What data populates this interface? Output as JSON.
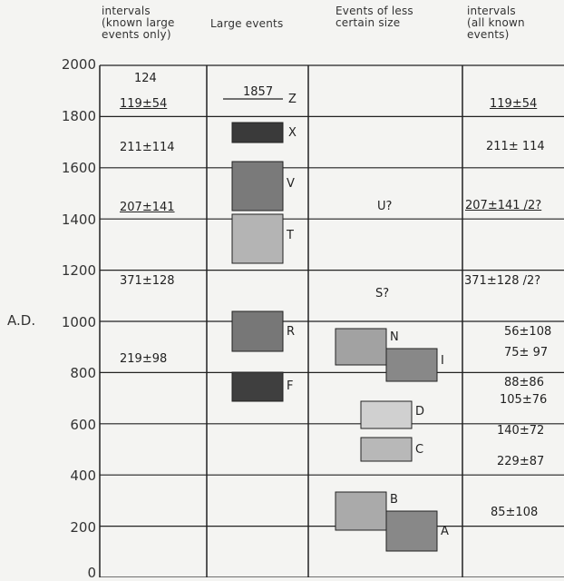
{
  "headers": {
    "col1": "intervals\n(known large\nevents only)",
    "col2": "Large events",
    "col3": "Events of less\ncertain size",
    "col4": "intervals\n(all known\nevents)"
  },
  "y_axis_title": "A.D.",
  "chart_data": {
    "type": "table",
    "y_ticks": [
      "2000",
      "1800",
      "1600",
      "1400",
      "1200",
      "1000",
      "800",
      "600",
      "400",
      "200",
      "0"
    ],
    "ylim": [
      0,
      2000
    ],
    "large_event_intervals": [
      "124",
      "119±54",
      "211±114",
      "207±141",
      "371±128",
      "219±98"
    ],
    "large_events_year_marker": "1857",
    "large_events": [
      {
        "label": "Z",
        "from": 1857,
        "to": 1857
      },
      {
        "label": "X",
        "from": 1700,
        "to": 1760
      },
      {
        "label": "V",
        "from": 1420,
        "to": 1620
      },
      {
        "label": "T",
        "from": 1210,
        "to": 1410
      },
      {
        "label": "R",
        "from": 880,
        "to": 1020
      },
      {
        "label": "F",
        "from": 680,
        "to": 780
      }
    ],
    "uncertain_events": [
      {
        "label": "U?",
        "year": 1400
      },
      {
        "label": "S?",
        "year": 980
      },
      {
        "label": "N",
        "from": 820,
        "to": 960
      },
      {
        "label": "I",
        "from": 760,
        "to": 880
      },
      {
        "label": "D",
        "from": 600,
        "to": 660
      },
      {
        "label": "C",
        "from": 450,
        "to": 540
      },
      {
        "label": "B",
        "from": 180,
        "to": 320
      },
      {
        "label": "A",
        "from": 100,
        "to": 260
      }
    ],
    "all_event_intervals": [
      "119±54",
      "211± 114",
      "207±141 /2?",
      "371±128 /2?",
      "56±108",
      "75± 97",
      "88±86",
      "105±76",
      "140±72",
      "229±87",
      "85±108"
    ]
  },
  "colors": {
    "grid": "#222222",
    "box_dark": "#3a3a3a",
    "box_mid": "#777777",
    "box_light": "#b4b4b4",
    "box_lighter": "#d0d0d0"
  }
}
